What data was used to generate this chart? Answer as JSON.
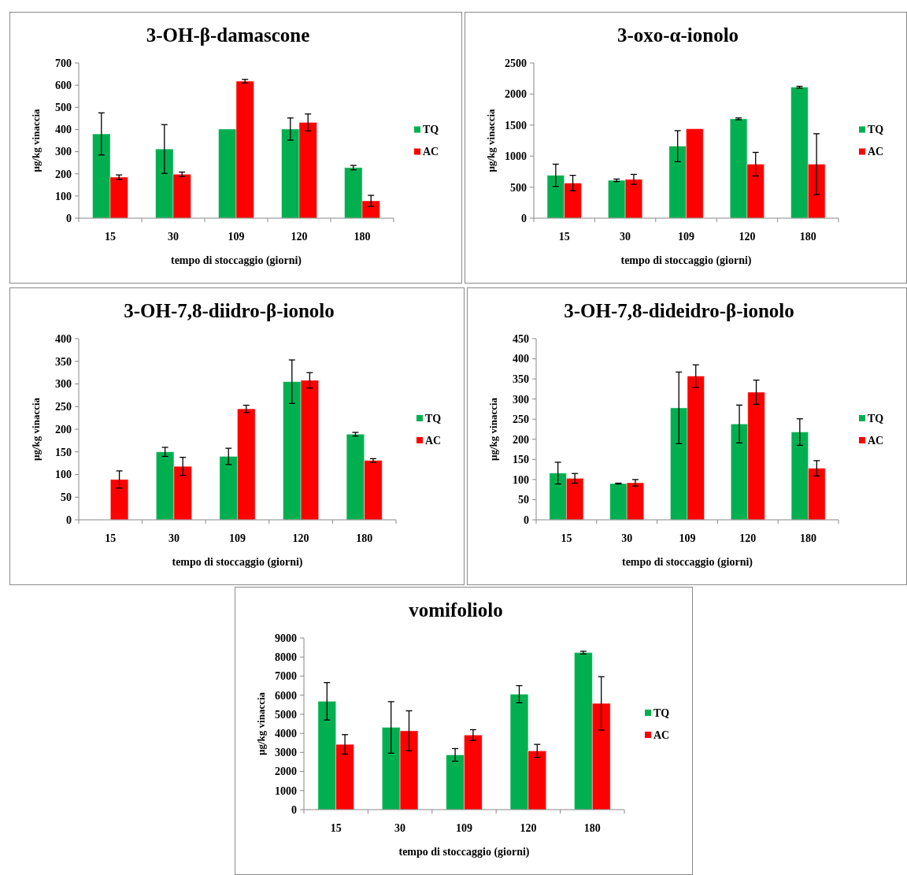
{
  "chart_data": [
    {
      "type": "bar",
      "title": "3-OH-β-damascone",
      "xlabel": "tempo di stoccaggio (giorni)",
      "ylabel": "µg/kg vinaccia",
      "categories": [
        "15",
        "30",
        "109",
        "120",
        "180"
      ],
      "ylim": [
        0,
        700
      ],
      "yticks": [
        0,
        100,
        200,
        300,
        400,
        500,
        600,
        700
      ],
      "legend": "right",
      "grid": false,
      "series": [
        {
          "name": "TQ",
          "color": "#00b050",
          "values": [
            380,
            312,
            402,
            402,
            228
          ],
          "errors": [
            95,
            110,
            null,
            50,
            10
          ]
        },
        {
          "name": "AC",
          "color": "#ff0000",
          "values": [
            185,
            198,
            618,
            432,
            78
          ],
          "errors": [
            10,
            10,
            8,
            38,
            25
          ]
        }
      ]
    },
    {
      "type": "bar",
      "title": "3-oxo-α-ionolo",
      "xlabel": "tempo di stoccaggio (giorni)",
      "ylabel": "µg/kg vinaccia",
      "categories": [
        "15",
        "30",
        "109",
        "120",
        "180"
      ],
      "ylim": [
        0,
        2500
      ],
      "yticks": [
        0,
        500,
        1000,
        1500,
        2000,
        2500
      ],
      "legend": "right",
      "grid": false,
      "series": [
        {
          "name": "TQ",
          "color": "#00b050",
          "values": [
            690,
            610,
            1160,
            1600,
            2110
          ],
          "errors": [
            180,
            20,
            250,
            15,
            15
          ]
        },
        {
          "name": "AC",
          "color": "#ff0000",
          "values": [
            565,
            625,
            1440,
            870,
            870
          ],
          "errors": [
            125,
            80,
            null,
            190,
            490
          ]
        }
      ]
    },
    {
      "type": "bar",
      "title": "3-OH-7,8-diidro-β-ionolo",
      "xlabel": "tempo di stoccaggio (giorni)",
      "ylabel": "µg/kg vinaccia",
      "categories": [
        "15",
        "30",
        "109",
        "120",
        "180"
      ],
      "ylim": [
        0,
        400
      ],
      "yticks": [
        0,
        50,
        100,
        150,
        200,
        250,
        300,
        350,
        400
      ],
      "legend": "right",
      "grid": false,
      "series": [
        {
          "name": "TQ",
          "color": "#00b050",
          "values": [
            null,
            150,
            140,
            305,
            189
          ],
          "errors": [
            null,
            10,
            18,
            48,
            4
          ]
        },
        {
          "name": "AC",
          "color": "#ff0000",
          "values": [
            89,
            118,
            245,
            308,
            131
          ],
          "errors": [
            19,
            20,
            8,
            17,
            4
          ]
        }
      ]
    },
    {
      "type": "bar",
      "title": "3-OH-7,8-dideidro-β-ionolo",
      "xlabel": "tempo di stoccaggio (giorni)",
      "ylabel": "µg/kg vinaccia",
      "categories": [
        "15",
        "30",
        "109",
        "120",
        "180"
      ],
      "ylim": [
        0,
        450
      ],
      "yticks": [
        0,
        50,
        100,
        150,
        200,
        250,
        300,
        350,
        400,
        450
      ],
      "legend": "right",
      "grid": false,
      "series": [
        {
          "name": "TQ",
          "color": "#00b050",
          "values": [
            116,
            90,
            278,
            238,
            218
          ],
          "errors": [
            27,
            1,
            89,
            47,
            33
          ]
        },
        {
          "name": "AC",
          "color": "#ff0000",
          "values": [
            103,
            92,
            357,
            317,
            128
          ],
          "errors": [
            12,
            8,
            28,
            30,
            19
          ]
        }
      ]
    },
    {
      "type": "bar",
      "title": "vomifoliolo",
      "xlabel": "tempo di stoccaggio (giorni)",
      "ylabel": "µg/kg vinaccia",
      "categories": [
        "15",
        "30",
        "109",
        "120",
        "180"
      ],
      "ylim": [
        0,
        9000
      ],
      "yticks": [
        0,
        1000,
        2000,
        3000,
        4000,
        5000,
        6000,
        7000,
        8000,
        9000
      ],
      "legend": "right",
      "grid": false,
      "series": [
        {
          "name": "TQ",
          "color": "#00b050",
          "values": [
            5680,
            4310,
            2870,
            6050,
            8230
          ],
          "errors": [
            980,
            1350,
            330,
            450,
            70
          ]
        },
        {
          "name": "AC",
          "color": "#ff0000",
          "values": [
            3420,
            4130,
            3910,
            3080,
            5570
          ],
          "errors": [
            510,
            1050,
            280,
            340,
            1400
          ]
        }
      ]
    }
  ]
}
